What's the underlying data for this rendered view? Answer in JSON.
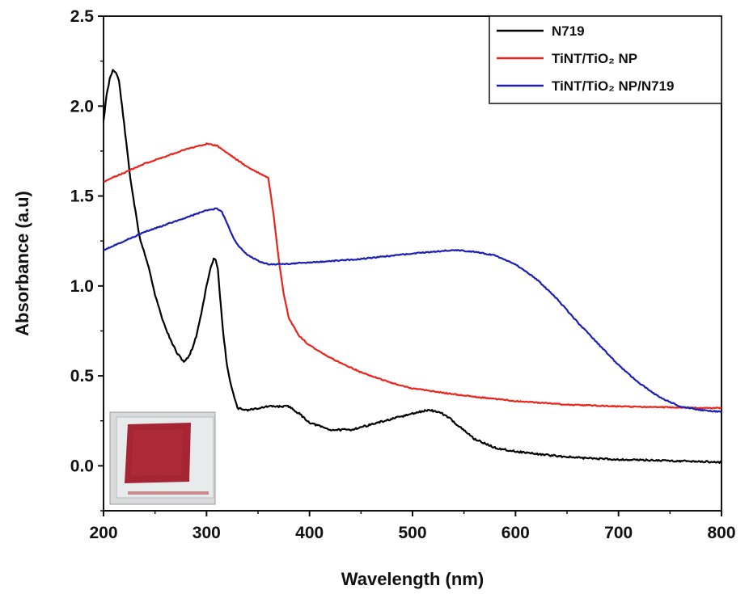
{
  "chart_data": {
    "type": "line",
    "xlabel": "Wavelength (nm)",
    "ylabel": "Absorbance (a.u)",
    "xlim": [
      200,
      800
    ],
    "ylim": [
      -0.25,
      2.5
    ],
    "xticks": [
      "200",
      "300",
      "400",
      "500",
      "600",
      "700",
      "800"
    ],
    "yticks": [
      "0.0",
      "0.5",
      "1.0",
      "1.5",
      "2.0",
      "2.5"
    ],
    "grid": false,
    "legend_position": "top-right",
    "series": [
      {
        "name": "N719",
        "color": "#000000",
        "x": [
          200,
          203,
          206,
          209,
          212,
          215,
          218,
          222,
          226,
          230,
          235,
          240,
          245,
          250,
          258,
          265,
          272,
          278,
          282,
          286,
          290,
          295,
          300,
          304,
          307,
          309,
          311,
          313,
          316,
          320,
          325,
          330,
          340,
          360,
          380,
          390,
          400,
          420,
          440,
          460,
          480,
          500,
          515,
          525,
          535,
          545,
          560,
          580,
          600,
          630,
          660,
          700,
          740,
          770,
          800
        ],
        "y": [
          1.92,
          2.06,
          2.15,
          2.2,
          2.19,
          2.14,
          2.0,
          1.8,
          1.6,
          1.45,
          1.27,
          1.18,
          1.08,
          0.95,
          0.8,
          0.7,
          0.62,
          0.58,
          0.6,
          0.65,
          0.72,
          0.85,
          1.0,
          1.1,
          1.15,
          1.14,
          1.1,
          0.95,
          0.75,
          0.55,
          0.42,
          0.32,
          0.31,
          0.33,
          0.33,
          0.29,
          0.24,
          0.2,
          0.2,
          0.23,
          0.26,
          0.29,
          0.31,
          0.3,
          0.27,
          0.22,
          0.15,
          0.1,
          0.08,
          0.06,
          0.045,
          0.035,
          0.03,
          0.025,
          0.02
        ]
      },
      {
        "name": "TiNT/TiO₂ NP",
        "color": "#e8241b",
        "x": [
          200,
          220,
          240,
          260,
          280,
          300,
          310,
          320,
          330,
          340,
          350,
          360,
          365,
          370,
          375,
          380,
          390,
          400,
          420,
          450,
          480,
          500,
          550,
          600,
          650,
          700,
          750,
          800
        ],
        "y": [
          1.58,
          1.63,
          1.68,
          1.72,
          1.76,
          1.79,
          1.78,
          1.74,
          1.7,
          1.66,
          1.63,
          1.6,
          1.4,
          1.15,
          0.95,
          0.82,
          0.72,
          0.67,
          0.6,
          0.52,
          0.46,
          0.43,
          0.39,
          0.36,
          0.34,
          0.33,
          0.325,
          0.32
        ]
      },
      {
        "name": "TiNT/TiO₂ NP/N719",
        "color": "#1c1fb4",
        "x": [
          200,
          220,
          240,
          260,
          280,
          300,
          310,
          315,
          320,
          325,
          330,
          340,
          350,
          360,
          370,
          400,
          450,
          500,
          520,
          540,
          560,
          580,
          600,
          620,
          640,
          660,
          680,
          700,
          720,
          740,
          760,
          780,
          800
        ],
        "y": [
          1.2,
          1.25,
          1.3,
          1.34,
          1.38,
          1.42,
          1.43,
          1.41,
          1.35,
          1.28,
          1.23,
          1.17,
          1.14,
          1.12,
          1.12,
          1.13,
          1.15,
          1.18,
          1.19,
          1.2,
          1.19,
          1.17,
          1.12,
          1.04,
          0.93,
          0.8,
          0.68,
          0.56,
          0.46,
          0.38,
          0.33,
          0.31,
          0.3
        ]
      }
    ]
  },
  "inset": {
    "image_semantic": "photo of red dye-sensitized film on glass substrate"
  }
}
